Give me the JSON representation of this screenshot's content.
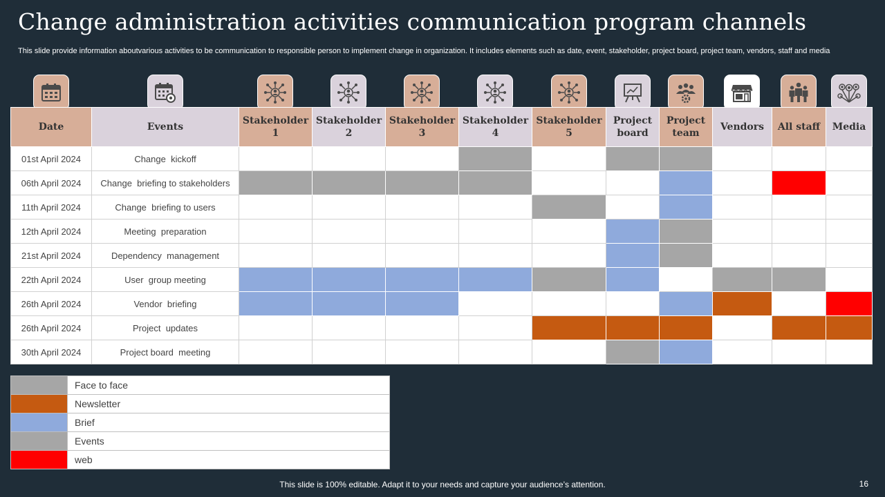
{
  "page": {
    "title": "Change administration activities communication program channels",
    "subtitle": "This slide provide information aboutvarious activities to be communication to responsible person to implement change in organization. It includes elements such as date, event, stakeholder, project board, project team, vendors, staff and media",
    "footer": "This slide is 100% editable. Adapt it to your needs and capture your audience’s attention.",
    "page_number": "16"
  },
  "colors": {
    "face_to_face": "#a6a6a6",
    "newsletter": "#c55a11",
    "brief": "#8faadc",
    "events": "#a6a6a6",
    "web": "#ff0000",
    "header_tan": "#d7ae98",
    "header_lilac": "#dad2dc"
  },
  "columns": [
    {
      "id": "date",
      "label": "Date",
      "icon": "calendar-icon",
      "shade": "tan"
    },
    {
      "id": "events",
      "label": "Events",
      "icon": "calendar-settings-icon",
      "shade": "lilac"
    },
    {
      "id": "s1",
      "label": "Stakeholder 1",
      "icon": "stakeholder-network-icon",
      "shade": "tan"
    },
    {
      "id": "s2",
      "label": "Stakeholder 2",
      "icon": "stakeholder-network-icon",
      "shade": "lilac"
    },
    {
      "id": "s3",
      "label": "Stakeholder 3",
      "icon": "stakeholder-network-icon",
      "shade": "tan"
    },
    {
      "id": "s4",
      "label": "Stakeholder 4",
      "icon": "stakeholder-network-icon",
      "shade": "lilac"
    },
    {
      "id": "s5",
      "label": "Stakeholder 5",
      "icon": "stakeholder-network-icon",
      "shade": "tan"
    },
    {
      "id": "pb",
      "label": "Project board",
      "icon": "presentation-board-icon",
      "shade": "lilac"
    },
    {
      "id": "pt",
      "label": "Project team",
      "icon": "team-gears-icon",
      "shade": "tan"
    },
    {
      "id": "vendors",
      "label": "Vendors",
      "icon": "storefront-icon",
      "shade": "lilac"
    },
    {
      "id": "staff",
      "label": "All staff",
      "icon": "staff-group-icon",
      "shade": "tan"
    },
    {
      "id": "media",
      "label": "Media",
      "icon": "media-network-icon",
      "shade": "lilac"
    }
  ],
  "rows": [
    {
      "date": "01st April 2024",
      "event": "Change  kickoff",
      "cells": [
        "",
        "",
        "",
        "face_to_face",
        "",
        "face_to_face",
        "face_to_face",
        "",
        "",
        ""
      ]
    },
    {
      "date": "06th April 2024",
      "event": "Change  briefing to stakeholders",
      "cells": [
        "face_to_face",
        "face_to_face",
        "face_to_face",
        "face_to_face",
        "",
        "",
        "brief",
        "",
        "web",
        ""
      ]
    },
    {
      "date": "11th April 2024",
      "event": "Change  briefing to users",
      "cells": [
        "",
        "",
        "",
        "",
        "face_to_face",
        "",
        "brief",
        "",
        "",
        ""
      ]
    },
    {
      "date": "12th April 2024",
      "event": "Meeting  preparation",
      "cells": [
        "",
        "",
        "",
        "",
        "",
        "brief",
        "face_to_face",
        "",
        "",
        ""
      ]
    },
    {
      "date": "21st April 2024",
      "event": "Dependency  management",
      "cells": [
        "",
        "",
        "",
        "",
        "",
        "brief",
        "face_to_face",
        "",
        "",
        ""
      ]
    },
    {
      "date": "22th April 2024",
      "event": "User  group meeting",
      "cells": [
        "brief",
        "brief",
        "brief",
        "brief",
        "face_to_face",
        "brief",
        "",
        "face_to_face",
        "face_to_face",
        ""
      ]
    },
    {
      "date": "26th April 2024",
      "event": "Vendor  briefing",
      "cells": [
        "brief",
        "brief",
        "brief",
        "",
        "",
        "",
        "brief",
        "newsletter",
        "",
        "web"
      ]
    },
    {
      "date": "26th April 2024",
      "event": "Project  updates",
      "cells": [
        "",
        "",
        "",
        "",
        "newsletter",
        "newsletter",
        "newsletter",
        "",
        "newsletter",
        "newsletter"
      ]
    },
    {
      "date": "30th April 2024",
      "event": "Project board  meeting",
      "cells": [
        "",
        "",
        "",
        "",
        "",
        "face_to_face",
        "brief",
        "",
        "",
        ""
      ]
    }
  ],
  "legend": [
    {
      "key": "face_to_face",
      "label": "Face to face"
    },
    {
      "key": "newsletter",
      "label": "Newsletter"
    },
    {
      "key": "brief",
      "label": "Brief"
    },
    {
      "key": "events",
      "label": "Events"
    },
    {
      "key": "web",
      "label": "web"
    }
  ]
}
